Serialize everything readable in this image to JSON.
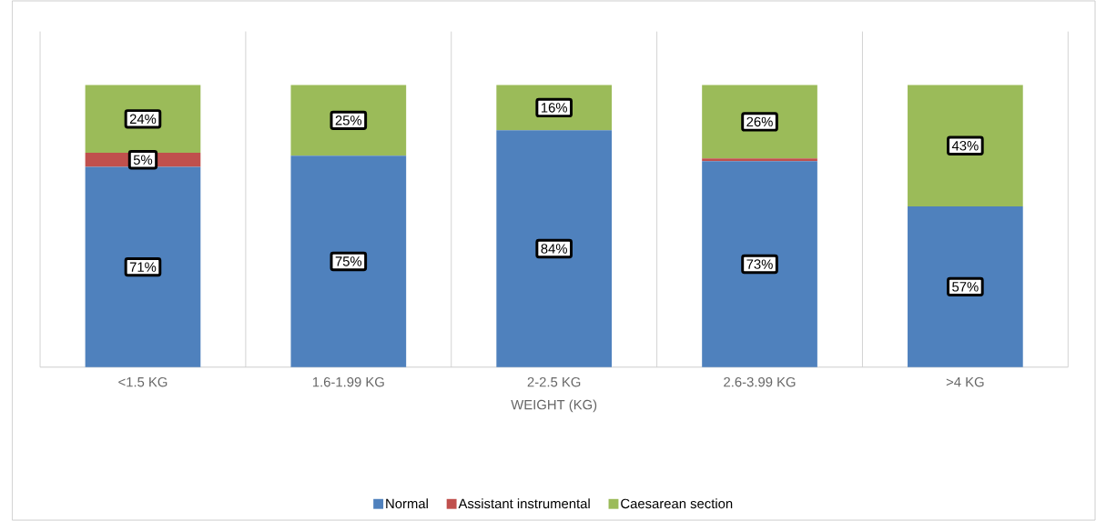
{
  "chart_data": {
    "type": "bar",
    "stacked": true,
    "xlabel": "WEIGHT (KG)",
    "categories": [
      "<1.5 KG",
      "1.6-1.99 KG",
      "2-2.5 KG",
      "2.6-3.99 KG",
      ">4 KG"
    ],
    "series": [
      {
        "name": "Normal",
        "color": "#4f81bd",
        "values": [
          71,
          75,
          84,
          73,
          57
        ],
        "value_labels": [
          "71%",
          "75%",
          "84%",
          "73%",
          "57%"
        ]
      },
      {
        "name": "Assistant instrumental",
        "color": "#c0504d",
        "values": [
          5,
          0,
          0,
          1,
          0
        ],
        "value_labels": [
          "5%",
          null,
          null,
          null,
          null
        ]
      },
      {
        "name": "Caesarean section",
        "color": "#9bbb59",
        "values": [
          24,
          25,
          16,
          26,
          43
        ],
        "value_labels": [
          "24%",
          "25%",
          "16%",
          "26%",
          "43%"
        ]
      }
    ],
    "grid": "x",
    "legend": "bottom"
  }
}
